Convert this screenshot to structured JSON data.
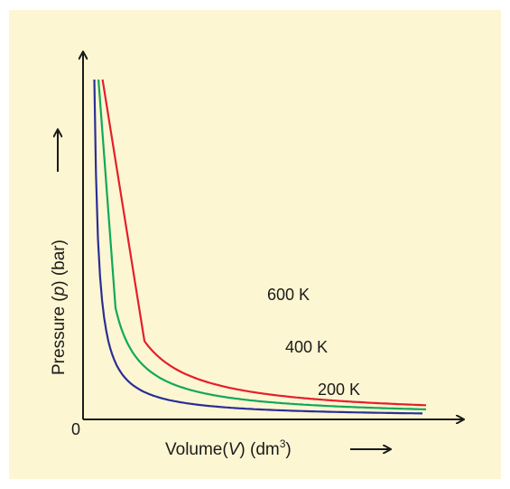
{
  "chart_data": {
    "type": "line",
    "title": "",
    "xlabel": "Volume(V) (dm³)",
    "xlabel_parts": {
      "prefix": "Volume(",
      "var": "V",
      "mid": ") (dm",
      "sup": "3",
      "suffix": ")"
    },
    "ylabel": "Pressure (p) (bar)",
    "ylabel_parts": {
      "prefix": "Pressure (",
      "var": "p",
      "suffix": ") (bar)"
    },
    "origin_label": "0",
    "xlim": [
      0,
      10
    ],
    "ylim": [
      0,
      10
    ],
    "grid": false,
    "series": [
      {
        "name": "200 K",
        "color": "#2a2f95",
        "constant": 1.0,
        "x_start": 0.1,
        "x_end": 9.2
      },
      {
        "name": "400 K",
        "color": "#11a85a",
        "constant": 2.0,
        "x_start": 0.7,
        "x_end": 9.3
      },
      {
        "name": "600 K",
        "color": "#e41f2b",
        "constant": 3.0,
        "x_start": 1.5,
        "x_end": 9.3
      }
    ]
  },
  "colors": {
    "background": "#fdf6d2",
    "axes": "#1a1a1a"
  }
}
